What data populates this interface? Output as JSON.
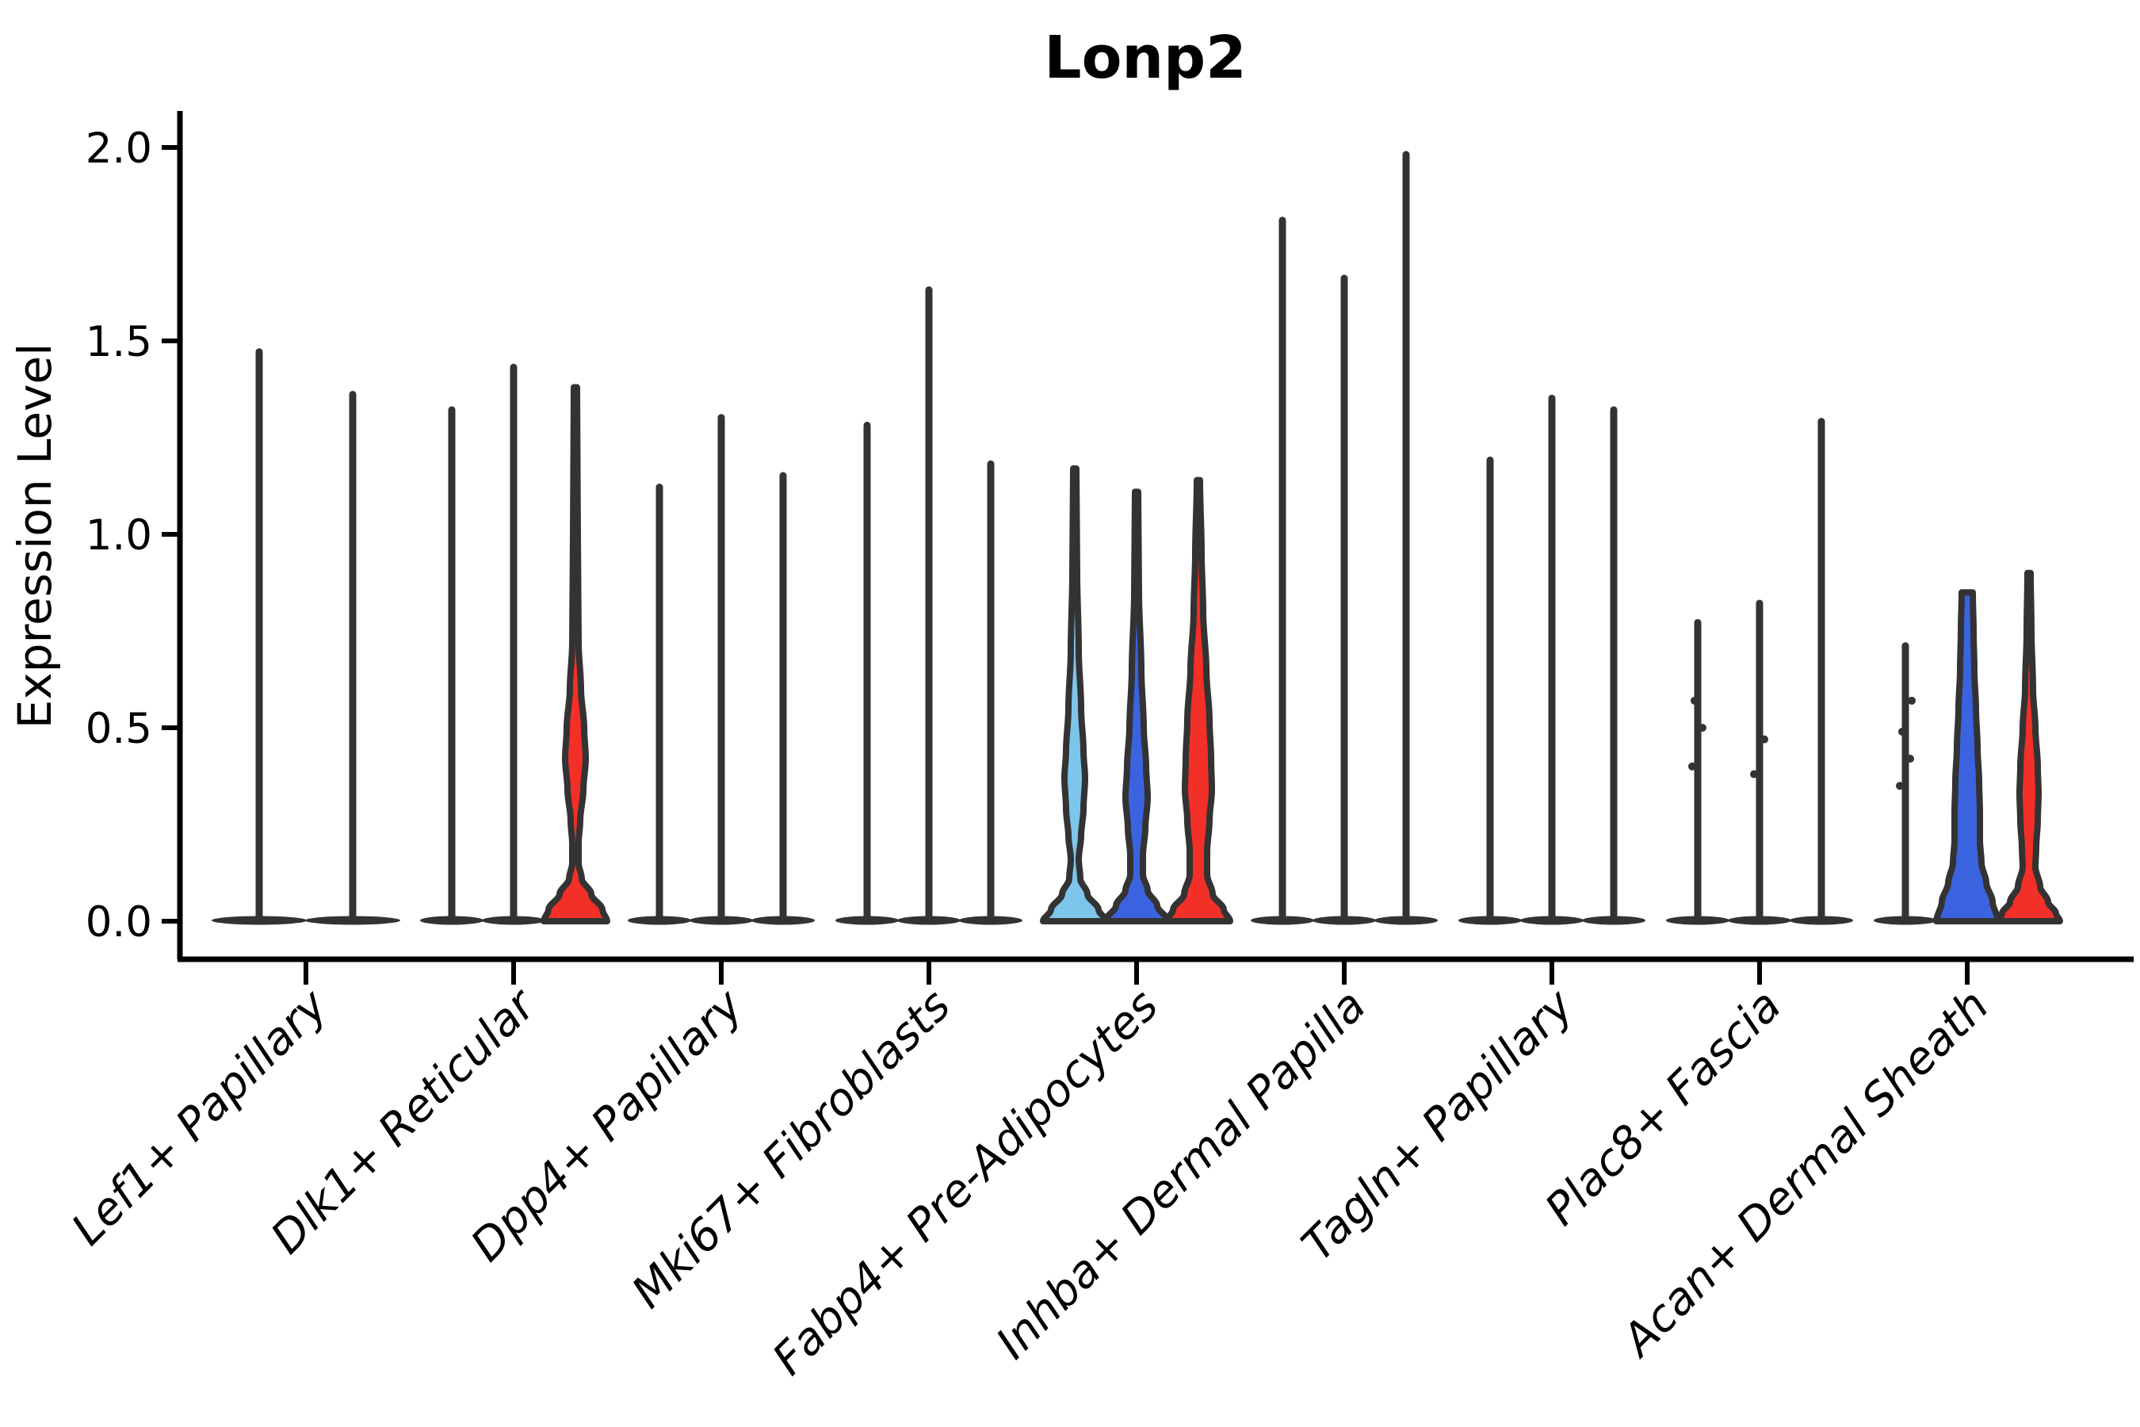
{
  "title": "Lonp2",
  "y_axis": {
    "label": "Expression Level",
    "tick_labels": [
      "0.0",
      "0.5",
      "1.0",
      "1.5",
      "2.0"
    ],
    "tick_values": [
      0,
      0.5,
      1.0,
      1.5,
      2.0
    ]
  },
  "colors": {
    "outline": "#333333",
    "axis": "#000000",
    "red": "#F23028",
    "blue": "#3C63DF",
    "light_blue": "#7EC5EC",
    "background": "#ffffff"
  },
  "chart_data": {
    "type": "violin",
    "title": "Lonp2",
    "xlabel": "",
    "ylabel": "Expression Level",
    "ylim": [
      0,
      2.05
    ],
    "grid": false,
    "legend": false,
    "categories": [
      "Lef1+ Papillary",
      "Dlk1+ Reticular",
      "Dpp4+ Papillary",
      "Mki67+ Fibroblasts",
      "Fabp4+ Pre-Adipocytes",
      "Inhba+ Dermal Papilla",
      "Tagln+ Papillary",
      "Plac8+ Fascia",
      "Acan+ Dermal Sheath"
    ],
    "groups": [
      {
        "category": "Lef1+ Papillary",
        "violins": [
          {
            "style": "line",
            "max": 1.48
          },
          {
            "style": "line",
            "max": 1.37
          }
        ]
      },
      {
        "category": "Dlk1+ Reticular",
        "violins": [
          {
            "style": "line",
            "max": 1.33
          },
          {
            "style": "line",
            "max": 1.44
          },
          {
            "style": "shaped",
            "color_key": "red",
            "max": 1.38,
            "profile": [
              [
                1.38,
                2
              ],
              [
                1.0,
                3
              ],
              [
                0.72,
                4
              ],
              [
                0.6,
                7
              ],
              [
                0.5,
                11
              ],
              [
                0.42,
                13
              ],
              [
                0.34,
                10
              ],
              [
                0.26,
                6
              ],
              [
                0.2,
                4
              ],
              [
                0.15,
                4
              ],
              [
                0.11,
                8
              ],
              [
                0.07,
                20
              ],
              [
                0.03,
                34
              ],
              [
                0.0,
                40
              ]
            ]
          }
        ]
      },
      {
        "category": "Dpp4+ Papillary",
        "violins": [
          {
            "style": "line",
            "max": 1.13
          },
          {
            "style": "line",
            "max": 1.31
          },
          {
            "style": "line",
            "max": 1.16
          }
        ]
      },
      {
        "category": "Mki67+ Fibroblasts",
        "violins": [
          {
            "style": "line",
            "max": 1.29
          },
          {
            "style": "line",
            "max": 1.64
          },
          {
            "style": "line",
            "max": 1.19
          }
        ]
      },
      {
        "category": "Fabp4+ Pre-Adipocytes",
        "violins": [
          {
            "style": "shaped",
            "color_key": "light_blue",
            "max": 1.17,
            "profile": [
              [
                1.17,
                2
              ],
              [
                0.9,
                3
              ],
              [
                0.7,
                5
              ],
              [
                0.55,
                8
              ],
              [
                0.44,
                11
              ],
              [
                0.37,
                13
              ],
              [
                0.29,
                11
              ],
              [
                0.22,
                8
              ],
              [
                0.16,
                5
              ],
              [
                0.11,
                7
              ],
              [
                0.07,
                16
              ],
              [
                0.03,
                30
              ],
              [
                0.0,
                40
              ]
            ]
          },
          {
            "style": "shaped",
            "color_key": "blue",
            "max": 1.11,
            "profile": [
              [
                1.11,
                2
              ],
              [
                0.85,
                3
              ],
              [
                0.65,
                6
              ],
              [
                0.5,
                9
              ],
              [
                0.4,
                12
              ],
              [
                0.32,
                14
              ],
              [
                0.24,
                11
              ],
              [
                0.17,
                8
              ],
              [
                0.12,
                8
              ],
              [
                0.08,
                14
              ],
              [
                0.04,
                26
              ],
              [
                0.0,
                40
              ]
            ]
          },
          {
            "style": "shaped",
            "color_key": "red",
            "max": 1.14,
            "profile": [
              [
                1.14,
                2
              ],
              [
                0.95,
                4
              ],
              [
                0.8,
                6
              ],
              [
                0.65,
                10
              ],
              [
                0.52,
                14
              ],
              [
                0.42,
                16
              ],
              [
                0.34,
                17
              ],
              [
                0.26,
                14
              ],
              [
                0.18,
                11
              ],
              [
                0.12,
                11
              ],
              [
                0.07,
                18
              ],
              [
                0.03,
                32
              ],
              [
                0.0,
                40
              ]
            ]
          }
        ]
      },
      {
        "category": "Inhba+ Dermal Papilla",
        "violins": [
          {
            "style": "line",
            "max": 1.82
          },
          {
            "style": "line",
            "max": 1.67
          },
          {
            "style": "line",
            "max": 1.99
          }
        ]
      },
      {
        "category": "Tagln+ Papillary",
        "violins": [
          {
            "style": "line",
            "max": 1.2
          },
          {
            "style": "line",
            "max": 1.36
          },
          {
            "style": "line",
            "max": 1.33
          }
        ]
      },
      {
        "category": "Plac8+ Fascia",
        "violins": [
          {
            "style": "line",
            "max": 0.78,
            "specks": [
              0.4,
              0.5,
              0.57
            ]
          },
          {
            "style": "line",
            "max": 0.83,
            "specks": [
              0.38,
              0.47
            ]
          },
          {
            "style": "line",
            "max": 1.3
          }
        ]
      },
      {
        "category": "Acan+ Dermal Sheath",
        "violins": [
          {
            "style": "line",
            "max": 0.72,
            "specks": [
              0.35,
              0.42,
              0.49,
              0.57
            ]
          },
          {
            "style": "shaped",
            "color_key": "blue",
            "max": 0.85,
            "profile": [
              [
                0.85,
                7
              ],
              [
                0.75,
                8
              ],
              [
                0.65,
                9
              ],
              [
                0.55,
                11
              ],
              [
                0.45,
                13
              ],
              [
                0.36,
                15
              ],
              [
                0.28,
                16
              ],
              [
                0.21,
                16
              ],
              [
                0.15,
                18
              ],
              [
                0.1,
                24
              ],
              [
                0.05,
                32
              ],
              [
                0.0,
                39
              ]
            ]
          },
          {
            "style": "shaped",
            "color_key": "red",
            "max": 0.9,
            "profile": [
              [
                0.9,
                2
              ],
              [
                0.75,
                3
              ],
              [
                0.6,
                5
              ],
              [
                0.5,
                8
              ],
              [
                0.4,
                11
              ],
              [
                0.33,
                12
              ],
              [
                0.26,
                11
              ],
              [
                0.19,
                9
              ],
              [
                0.14,
                8
              ],
              [
                0.09,
                14
              ],
              [
                0.05,
                24
              ],
              [
                0.02,
                34
              ],
              [
                0.0,
                39
              ]
            ]
          }
        ]
      }
    ]
  }
}
